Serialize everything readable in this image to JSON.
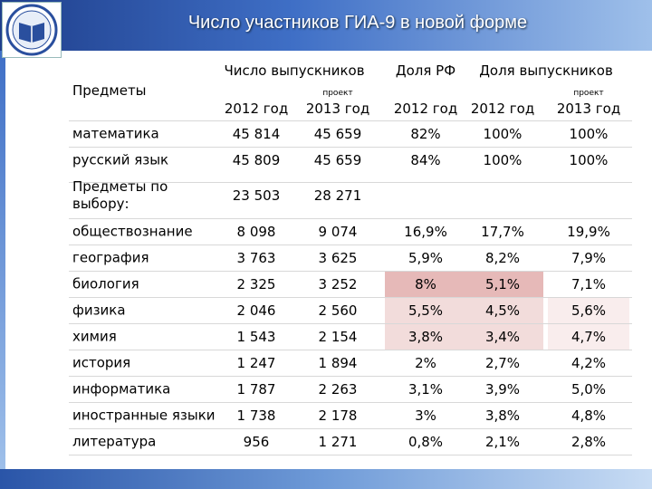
{
  "header": {
    "title": "Число участников ГИА-9 в новой форме"
  },
  "table": {
    "subject_header": "Предметы",
    "column_groups": [
      "Число выпускников",
      "Доля РФ",
      "Доля выпускников"
    ],
    "project_notes": [
      "проект",
      "проект"
    ],
    "years": [
      "2012 год",
      "2013 год",
      "2012 год",
      "2012 год",
      "2013 год"
    ],
    "rows": [
      [
        "математика",
        "45 814",
        "45 659",
        "82%",
        "100%",
        "100%"
      ],
      [
        "русский язык",
        "45 809",
        "45 659",
        "84%",
        "100%",
        "100%"
      ],
      [
        "Предметы по выбору:",
        "23 503",
        "28 271"
      ],
      [
        "обществознание",
        "8 098",
        "9 074",
        "16,9%",
        "17,7%",
        "19,9%"
      ],
      [
        "география",
        "3 763",
        "3 625",
        "5,9%",
        "8,2%",
        "7,9%"
      ],
      [
        "биология",
        "2 325",
        "3 252",
        "8%",
        "5,1%",
        "7,1%"
      ],
      [
        "физика",
        "2 046",
        "2 560",
        "5,5%",
        "4,5%",
        "5,6%"
      ],
      [
        "химия",
        "1 543",
        "2 154",
        "3,8%",
        "3,4%",
        "4,7%"
      ],
      [
        "история",
        "1 247",
        "1 894",
        "2%",
        "2,7%",
        "4,2%"
      ],
      [
        "информатика",
        "1 787",
        "2 263",
        "3,1%",
        "3,9%",
        "5,0%"
      ],
      [
        "иностранные языки",
        "1 738",
        "2 178",
        "3%",
        "3,8%",
        "4,8%"
      ],
      [
        "литература",
        "956",
        "1 271",
        "0,8%",
        "2,1%",
        "2,8%"
      ]
    ]
  }
}
